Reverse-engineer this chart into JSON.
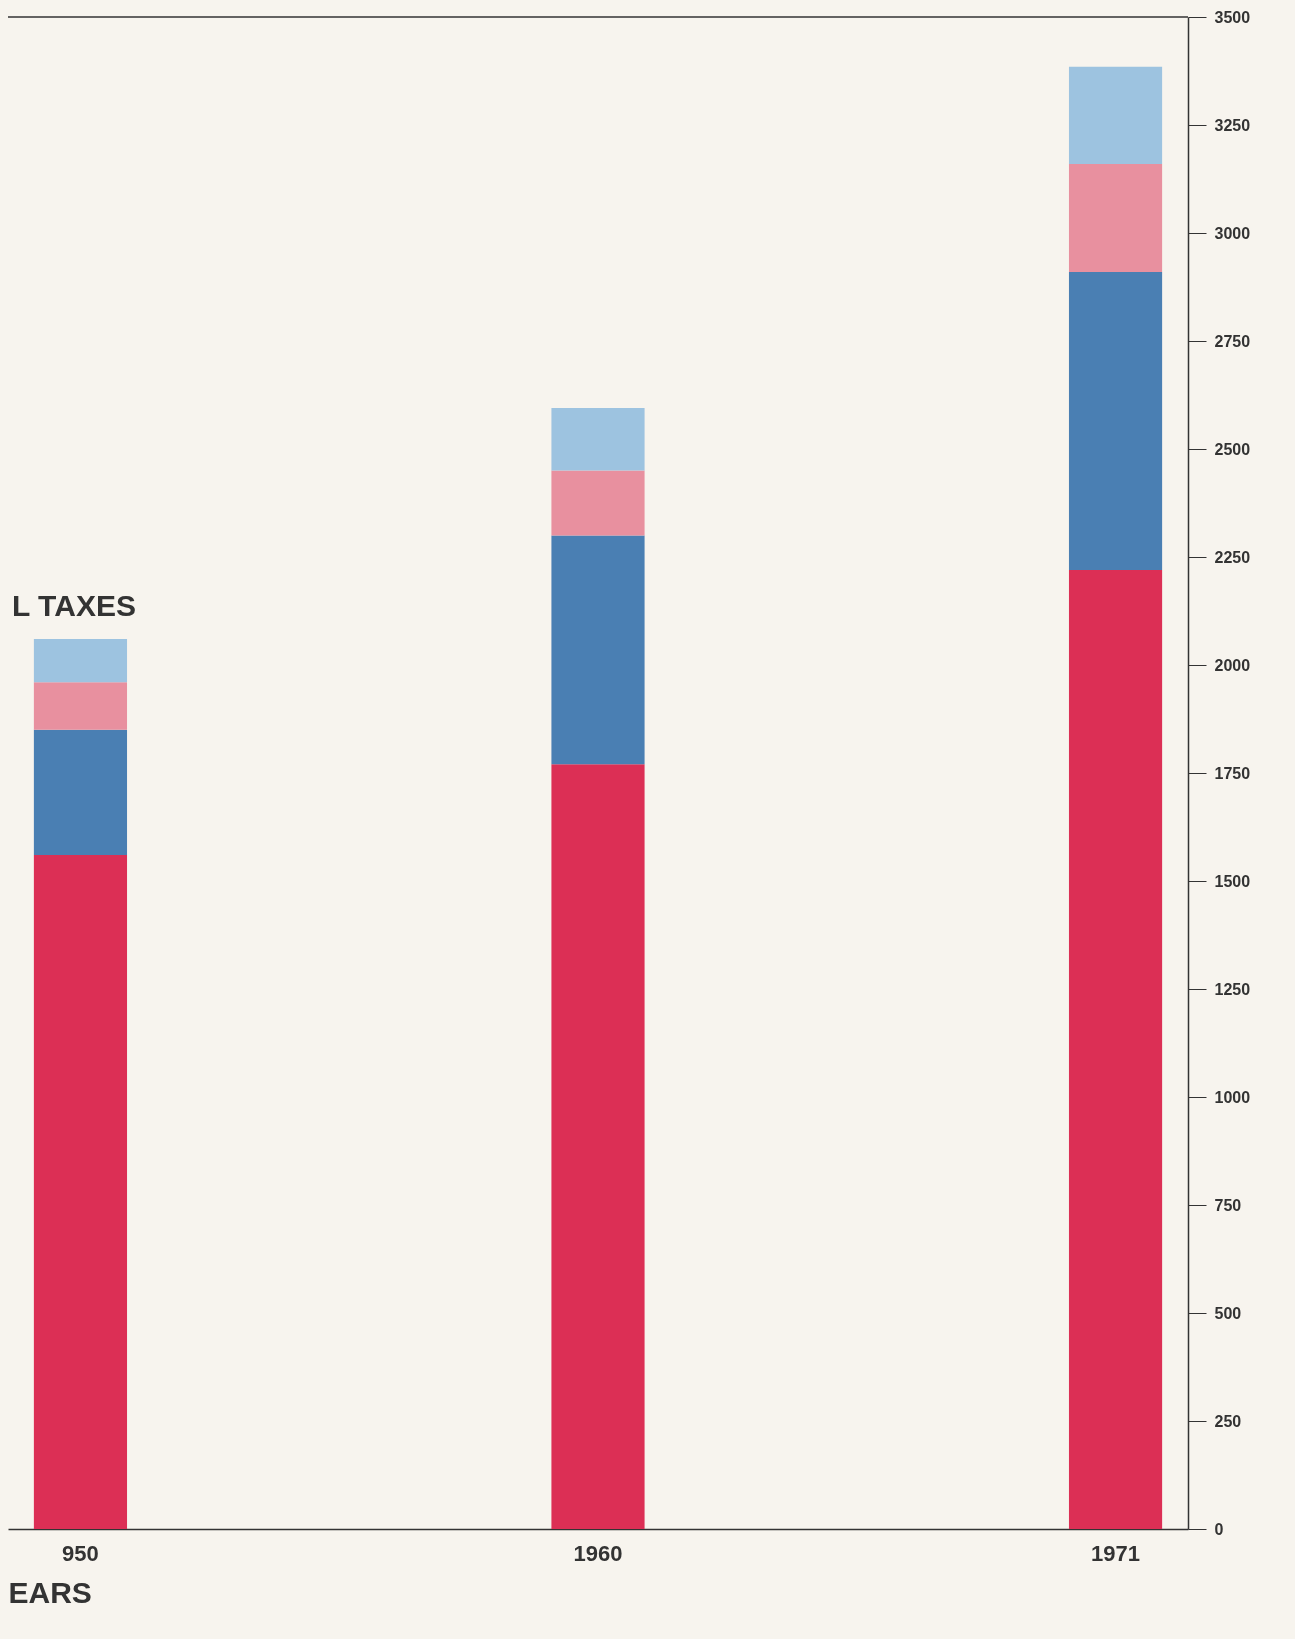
{
  "chart_data": {
    "type": "bar",
    "stacked": true,
    "xlabel": "EARS",
    "annotations": [
      "L TAXES"
    ],
    "categories": [
      "950",
      "1960",
      "1971"
    ],
    "series": [
      {
        "color": "#dc2f55",
        "values": [
          1560,
          1770,
          2220
        ]
      },
      {
        "color": "#4a7fb3",
        "values": [
          290,
          530,
          690
        ]
      },
      {
        "color": "#e8909f",
        "values": [
          110,
          150,
          250
        ]
      },
      {
        "color": "#9dc3e0",
        "values": [
          100,
          145,
          225
        ]
      }
    ],
    "ylim": [
      0,
      3500
    ],
    "yticks": [
      0,
      250,
      500,
      750,
      1000,
      1250,
      1500,
      1750,
      2000,
      2250,
      2500,
      2750,
      3000,
      3250,
      3500
    ],
    "grid": false
  }
}
